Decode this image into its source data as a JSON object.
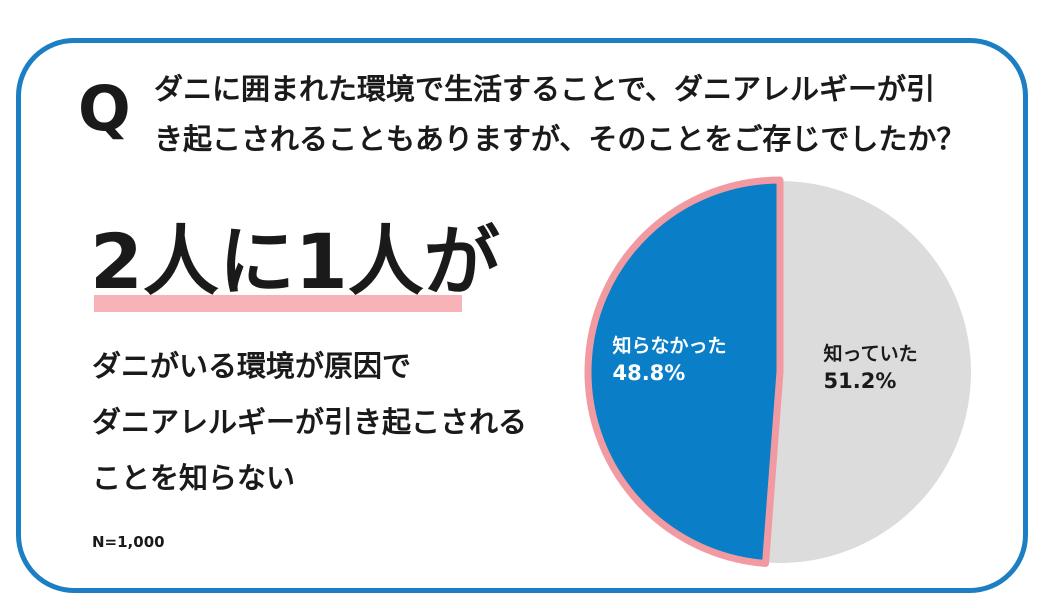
{
  "question": {
    "marker": "Q",
    "line1": "ダニに囲まれた環境で生活することで、ダニアレルギーが引",
    "line2": "き起こされることもありますが、そのことをご存じでしたか？"
  },
  "headline": "2人に1人が",
  "subtext": {
    "line1": "ダニがいる環境が原因で",
    "line2": "ダニアレルギーが引き起こされる",
    "line3": "ことを知らない"
  },
  "sample_size": "N=1,000",
  "colors": {
    "frame": "#1d7fc3",
    "highlight": "#f7b3b7",
    "slice_unaware": "#0a7fc7",
    "slice_aware": "#dcdcdc",
    "slice_outline": "#f29aa2"
  },
  "chart_data": {
    "type": "pie",
    "slices": [
      {
        "label": "知っていた",
        "value": 51.2,
        "value_label": "51.2%",
        "color": "#dcdcdc"
      },
      {
        "label": "知らなかった",
        "value": 48.8,
        "value_label": "48.8%",
        "color": "#0a7fc7",
        "highlighted": true
      }
    ],
    "start": "12 o'clock",
    "direction": "clockwise"
  }
}
